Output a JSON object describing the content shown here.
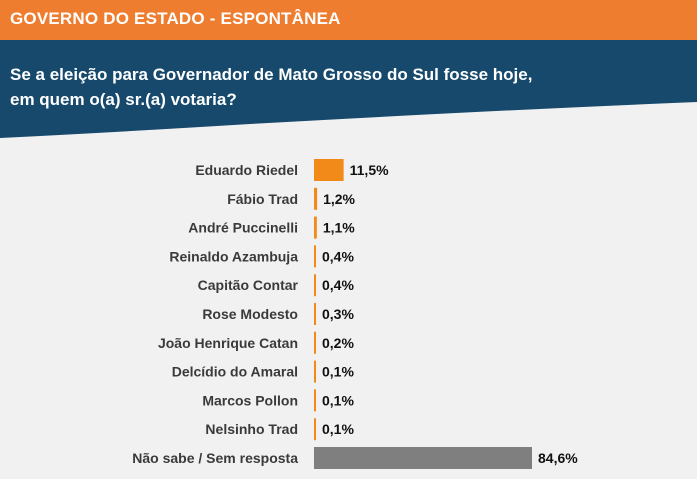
{
  "header": {
    "title": "GOVERNO DO ESTADO - ESPONTÂNEA"
  },
  "question": {
    "line1": "Se a eleição para Governador de Mato Grosso do Sul fosse hoje,",
    "line2": "em quem o(a) sr.(a) votaria?"
  },
  "colors": {
    "header_bg": "#ee7d2f",
    "banner_bg": "#16496c",
    "page_bg": "#f1f1f1",
    "candidate_bar": "#f28a1a",
    "undecided_bar": "#7f7f7f",
    "label_text": "#3a3a3a",
    "value_text": "#111111"
  },
  "chart_data": {
    "type": "bar",
    "orientation": "horizontal",
    "title": "",
    "xlabel": "",
    "ylabel": "",
    "categories": [
      "Eduardo Riedel",
      "Fábio Trad",
      "André Puccinelli",
      "Reinaldo Azambuja",
      "Capitão Contar",
      "Rose Modesto",
      "João Henrique Catan",
      "Delcídio do Amaral",
      "Marcos Pollon",
      "Nelsinho Trad",
      "Não sabe / Sem resposta"
    ],
    "values": [
      11.5,
      1.2,
      1.1,
      0.4,
      0.4,
      0.3,
      0.2,
      0.1,
      0.1,
      0.1,
      84.6
    ],
    "value_labels": [
      "11,5%",
      "1,2%",
      "1,1%",
      "0,4%",
      "0,4%",
      "0,3%",
      "0,2%",
      "0,1%",
      "0,1%",
      "0,1%",
      "84,6%"
    ],
    "bar_colors": [
      "#f28a1a",
      "#f28a1a",
      "#f28a1a",
      "#f28a1a",
      "#f28a1a",
      "#f28a1a",
      "#f28a1a",
      "#f28a1a",
      "#f28a1a",
      "#f28a1a",
      "#7f7f7f"
    ],
    "xlim": [
      0,
      84.6
    ],
    "grid": false,
    "legend": "none"
  }
}
